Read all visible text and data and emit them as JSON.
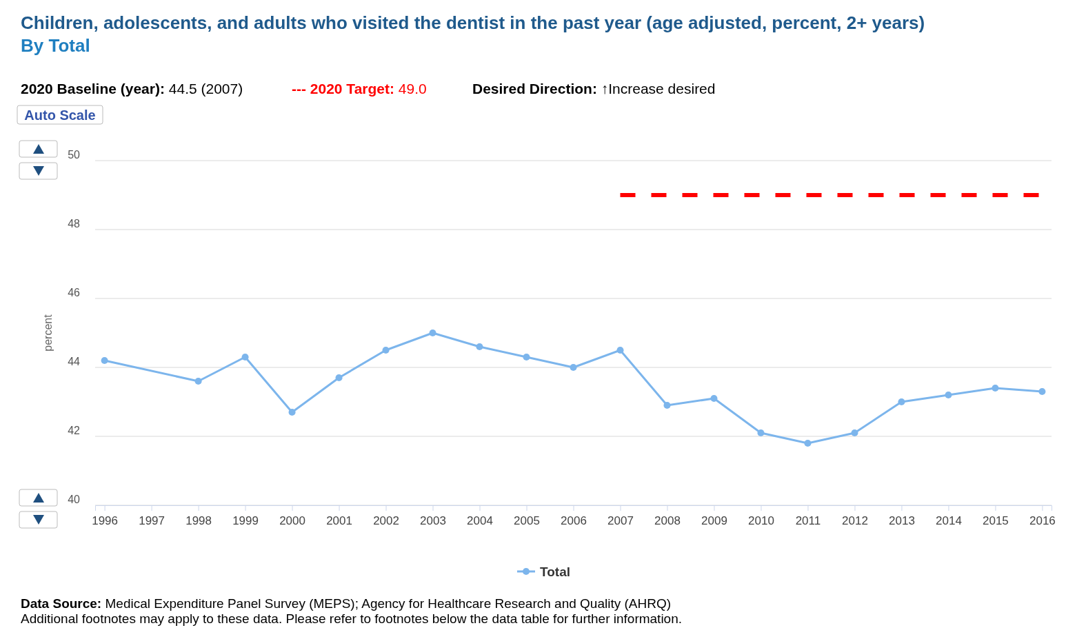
{
  "chart_data": {
    "type": "line",
    "title": "Children, adolescents, and adults who visited the dentist in the past year (age adjusted, percent, 2+ years)",
    "subtitle": "By Total",
    "ylabel": "percent",
    "annotations": [
      "2020 Baseline (year): 44.5 (2007)",
      "--- 2020 Target: 49.0",
      "Desired Direction: ↑Increase desired",
      "Auto Scale",
      "Data Source: Medical Expenditure Panel Survey (MEPS); Agency for Healthcare Research and Quality (AHRQ)",
      "Additional footnotes may apply to these data. Please refer to footnotes below the data table for further information."
    ],
    "series": [
      {
        "name": "Total",
        "color": "#7cb5ec",
        "x": [
          1996,
          1998,
          1999,
          2000,
          2001,
          2002,
          2003,
          2004,
          2005,
          2006,
          2007,
          2008,
          2009,
          2010,
          2011,
          2012,
          2013,
          2014,
          2015,
          2016
        ],
        "values": [
          44.2,
          43.6,
          44.3,
          42.7,
          43.7,
          44.5,
          45.0,
          44.6,
          44.3,
          44.0,
          44.5,
          42.9,
          43.1,
          42.1,
          41.8,
          42.1,
          43.0,
          43.2,
          43.4,
          43.3
        ],
        "marker": "circle"
      },
      {
        "color": "#ff0000",
        "x": [
          2007,
          2016
        ],
        "values": [
          49,
          49
        ],
        "line_style": "dashed",
        "marker": "none"
      }
    ],
    "xlim": [
      1995.8,
      2016.2
    ],
    "xticks": [
      1996,
      1997,
      1998,
      1999,
      2000,
      2001,
      2002,
      2003,
      2004,
      2005,
      2006,
      2007,
      2008,
      2009,
      2010,
      2011,
      2012,
      2013,
      2014,
      2015,
      2016
    ],
    "ylim": [
      40,
      50
    ],
    "yticks": [
      40,
      42,
      44,
      46,
      48,
      50
    ],
    "grid": "y",
    "legend": "bottom"
  }
}
